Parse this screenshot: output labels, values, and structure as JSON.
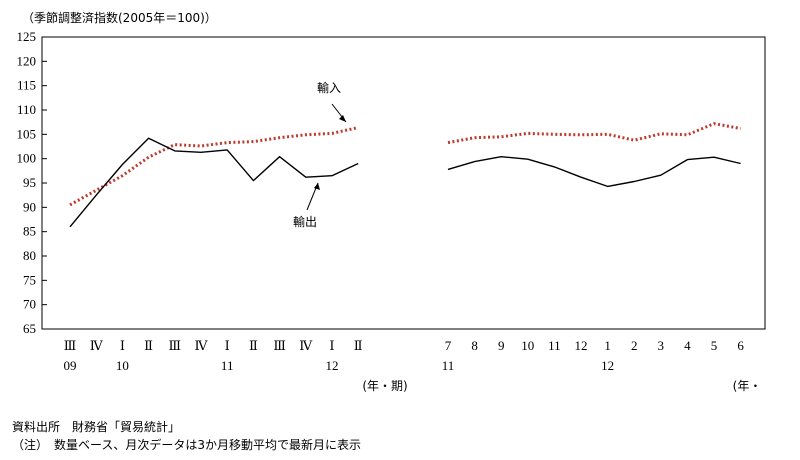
{
  "chart_data": {
    "type": "line",
    "ylabel": "（季節調整済指数(2005年＝100)）",
    "ylim": [
      65,
      125
    ],
    "yticks": [
      65,
      70,
      75,
      80,
      85,
      90,
      95,
      100,
      105,
      110,
      115,
      120,
      125
    ],
    "grid": false,
    "panels": [
      {
        "name": "quarterly",
        "x": [
          "Ⅲ",
          "Ⅳ",
          "Ⅰ",
          "Ⅱ",
          "Ⅲ",
          "Ⅳ",
          "Ⅰ",
          "Ⅱ",
          "Ⅲ",
          "Ⅳ",
          "Ⅰ",
          "Ⅱ"
        ],
        "year_labels": [
          {
            "index": 0,
            "label": "09"
          },
          {
            "index": 2,
            "label": "10"
          },
          {
            "index": 6,
            "label": "11"
          },
          {
            "index": 10,
            "label": "12"
          }
        ],
        "axis_unit": "(年・期)",
        "series": [
          {
            "name": "輸入",
            "style": "dotted",
            "color": "#c0392b",
            "values": [
              90.5,
              93.5,
              96.5,
              100.3,
              102.9,
              102.6,
              103.3,
              103.5,
              104.3,
              104.9,
              105.2,
              106.4
            ]
          },
          {
            "name": "輸出",
            "style": "solid",
            "color": "#000000",
            "values": [
              86.0,
              92.5,
              98.8,
              104.2,
              101.6,
              101.3,
              101.8,
              95.5,
              100.4,
              96.2,
              96.5,
              99.0
            ]
          }
        ]
      },
      {
        "name": "monthly",
        "x": [
          "7",
          "8",
          "9",
          "10",
          "11",
          "12",
          "1",
          "2",
          "3",
          "4",
          "5",
          "6"
        ],
        "year_labels": [
          {
            "index": 0,
            "label": "11"
          },
          {
            "index": 6,
            "label": "12"
          }
        ],
        "axis_unit": "(年・",
        "series": [
          {
            "name": "輸入",
            "style": "dotted",
            "color": "#c0392b",
            "values": [
              103.3,
              104.3,
              104.5,
              105.2,
              105.0,
              104.9,
              105.0,
              103.8,
              105.1,
              104.9,
              107.2,
              106.2
            ]
          },
          {
            "name": "輸出",
            "style": "solid",
            "color": "#000000",
            "values": [
              97.8,
              99.4,
              100.4,
              99.9,
              98.3,
              96.2,
              94.3,
              95.3,
              96.6,
              99.8,
              100.3,
              99.0
            ]
          }
        ]
      }
    ],
    "annotations": [
      {
        "text": "輸入"
      },
      {
        "text": "輸出"
      }
    ]
  },
  "notes": {
    "source": "資料出所　財務省「貿易統計」",
    "remark": "（注）　数量ベース、月次データは3か月移動平均で最新月に表示"
  }
}
